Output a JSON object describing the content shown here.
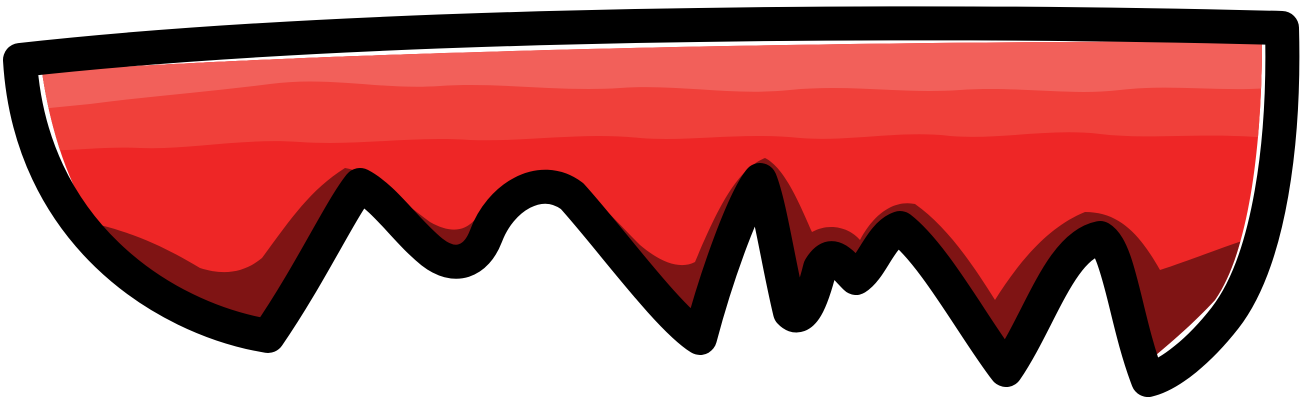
{
  "graphic": {
    "kind": "cartoon-drip-shape",
    "colors": {
      "outline": "#000000",
      "shadow": "#7f1414",
      "body": "#ee2626",
      "band_mid": "#f0403a",
      "band_light": "#f2605a",
      "background": "#ffffff"
    }
  }
}
